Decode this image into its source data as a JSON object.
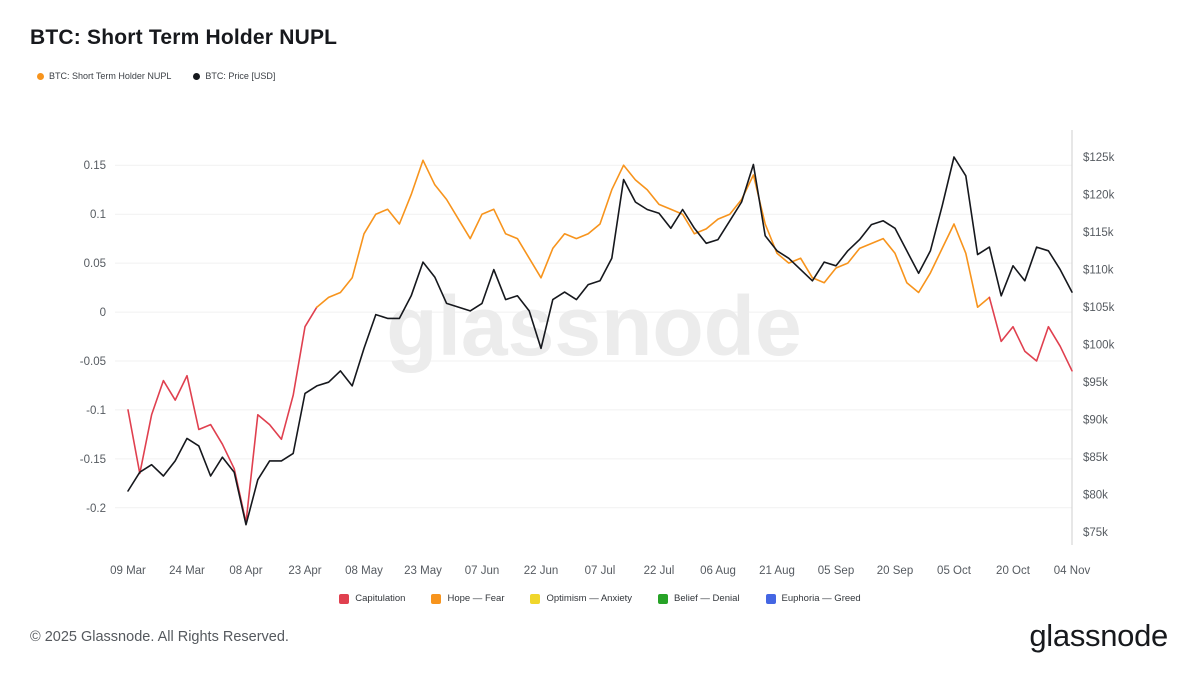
{
  "title": "BTC: Short Term Holder NUPL",
  "watermark": "glassnode",
  "footer": {
    "copyright": "© 2025 Glassnode. All Rights Reserved.",
    "brand": "glassnode"
  },
  "series_legend": [
    {
      "label": "BTC: Short Term Holder NUPL",
      "color": "#f7941d"
    },
    {
      "label": "BTC: Price [USD]",
      "color": "#16181d"
    }
  ],
  "zones": [
    {
      "label": "Capitulation",
      "color": "#e0404f"
    },
    {
      "label": "Hope — Fear",
      "color": "#f7941d"
    },
    {
      "label": "Optimism — Anxiety",
      "color": "#f0d62b"
    },
    {
      "label": "Belief — Denial",
      "color": "#27a327"
    },
    {
      "label": "Euphoria — Greed",
      "color": "#4466e3"
    }
  ],
  "chart_data": {
    "type": "line",
    "title": "BTC: Short Term Holder NUPL",
    "x_step_days": 3,
    "x_ticks": [
      {
        "day": 0,
        "label": "09 Mar"
      },
      {
        "day": 15,
        "label": "24 Mar"
      },
      {
        "day": 30,
        "label": "08 Apr"
      },
      {
        "day": 45,
        "label": "23 Apr"
      },
      {
        "day": 60,
        "label": "08 May"
      },
      {
        "day": 75,
        "label": "23 May"
      },
      {
        "day": 90,
        "label": "07 Jun"
      },
      {
        "day": 105,
        "label": "22 Jun"
      },
      {
        "day": 120,
        "label": "07 Jul"
      },
      {
        "day": 135,
        "label": "22 Jul"
      },
      {
        "day": 150,
        "label": "06 Aug"
      },
      {
        "day": 165,
        "label": "21 Aug"
      },
      {
        "day": 180,
        "label": "05 Sep"
      },
      {
        "day": 195,
        "label": "20 Sep"
      },
      {
        "day": 210,
        "label": "05 Oct"
      },
      {
        "day": 225,
        "label": "20 Oct"
      },
      {
        "day": 240,
        "label": "04 Nov"
      }
    ],
    "left_axis": {
      "range": [
        -0.238,
        0.186
      ],
      "ticks": [
        {
          "value": 0.15,
          "label": "0.15"
        },
        {
          "value": 0.1,
          "label": "0.1"
        },
        {
          "value": 0.05,
          "label": "0.05"
        },
        {
          "value": 0,
          "label": "0"
        },
        {
          "value": -0.05,
          "label": "-0.05"
        },
        {
          "value": -0.1,
          "label": "-0.1"
        },
        {
          "value": -0.15,
          "label": "-0.15"
        },
        {
          "value": -0.2,
          "label": "-0.2"
        }
      ]
    },
    "right_axis": {
      "range": [
        73300,
        128600
      ],
      "ticks": [
        {
          "value": 125000,
          "label": "$125k"
        },
        {
          "value": 120000,
          "label": "$120k"
        },
        {
          "value": 115000,
          "label": "$115k"
        },
        {
          "value": 110000,
          "label": "$110k"
        },
        {
          "value": 105000,
          "label": "$105k"
        },
        {
          "value": 100000,
          "label": "$100k"
        },
        {
          "value": 95000,
          "label": "$95k"
        },
        {
          "value": 90000,
          "label": "$90k"
        },
        {
          "value": 85000,
          "label": "$85k"
        },
        {
          "value": 80000,
          "label": "$80k"
        },
        {
          "value": 75000,
          "label": "$75k"
        }
      ]
    },
    "series": [
      {
        "name": "BTC: Short Term Holder NUPL",
        "axis": "left",
        "zone_colors": {
          "below_zero": "#e0404f",
          "above_zero": "#f7941d"
        },
        "values": [
          -0.1,
          -0.165,
          -0.105,
          -0.07,
          -0.09,
          -0.065,
          -0.12,
          -0.115,
          -0.135,
          -0.16,
          -0.215,
          -0.105,
          -0.115,
          -0.13,
          -0.085,
          -0.015,
          0.005,
          0.015,
          0.02,
          0.035,
          0.08,
          0.1,
          0.105,
          0.09,
          0.12,
          0.155,
          0.13,
          0.115,
          0.095,
          0.075,
          0.1,
          0.105,
          0.08,
          0.075,
          0.055,
          0.035,
          0.065,
          0.08,
          0.075,
          0.08,
          0.09,
          0.125,
          0.15,
          0.135,
          0.125,
          0.11,
          0.105,
          0.1,
          0.08,
          0.085,
          0.095,
          0.1,
          0.115,
          0.14,
          0.09,
          0.06,
          0.05,
          0.055,
          0.035,
          0.03,
          0.045,
          0.05,
          0.065,
          0.07,
          0.075,
          0.06,
          0.03,
          0.02,
          0.04,
          0.065,
          0.09,
          0.06,
          0.005,
          0.015,
          -0.03,
          -0.015,
          -0.04,
          -0.05,
          -0.015,
          -0.035,
          -0.06
        ]
      },
      {
        "name": "BTC: Price [USD]",
        "axis": "right",
        "color": "#16181d",
        "values": [
          80500,
          83000,
          84000,
          82500,
          84500,
          87500,
          86500,
          82500,
          85000,
          83000,
          76000,
          82000,
          84500,
          84500,
          85500,
          93500,
          94500,
          95000,
          96500,
          94500,
          99500,
          104000,
          103500,
          103500,
          106500,
          111000,
          109000,
          105500,
          105000,
          104500,
          105500,
          110000,
          106000,
          106500,
          104500,
          99500,
          106000,
          107000,
          106000,
          108000,
          108500,
          111500,
          122000,
          119000,
          118000,
          117500,
          115500,
          118000,
          115500,
          113500,
          114000,
          116500,
          119000,
          124000,
          114500,
          112500,
          111500,
          110000,
          108500,
          111000,
          110500,
          112500,
          114000,
          116000,
          116500,
          115500,
          112500,
          109500,
          112500,
          118500,
          125000,
          122500,
          112000,
          113000,
          106500,
          110500,
          108500,
          113000,
          112500,
          110000,
          107000
        ]
      }
    ]
  }
}
